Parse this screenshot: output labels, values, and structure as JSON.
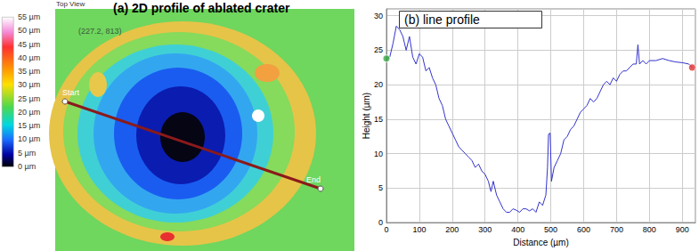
{
  "chart_data": [
    {
      "type": "image",
      "title": "(a) 2D profile of ablated crater",
      "view_label": "Top View",
      "annotations": [
        "(227.2, 813)"
      ],
      "line_labels": [
        "Start",
        "End"
      ],
      "colorbar": {
        "range": [
          0,
          55
        ],
        "ticks": [
          {
            "value": 0,
            "label": "0 µm"
          },
          {
            "value": 5,
            "label": "5 µm"
          },
          {
            "value": 10,
            "label": "10 µm"
          },
          {
            "value": 15,
            "label": "15 µm"
          },
          {
            "value": 20,
            "label": "20 µm"
          },
          {
            "value": 25,
            "label": "25 µm"
          },
          {
            "value": 30,
            "label": "30 µm"
          },
          {
            "value": 35,
            "label": "35 µm"
          },
          {
            "value": 40,
            "label": "40 µm"
          },
          {
            "value": 45,
            "label": "45 µm"
          },
          {
            "value": 50,
            "label": "50 µm"
          },
          {
            "value": 55,
            "label": "55 µm"
          }
        ]
      }
    },
    {
      "type": "line",
      "title": "(b) line profile",
      "x_label": "Distance (µm)",
      "y_label": "Height (µm)",
      "x": [
        0,
        10,
        20,
        30,
        40,
        50,
        60,
        70,
        80,
        90,
        100,
        110,
        120,
        130,
        140,
        150,
        160,
        170,
        180,
        190,
        200,
        210,
        220,
        230,
        240,
        250,
        260,
        270,
        280,
        290,
        300,
        310,
        318,
        325,
        335,
        345,
        355,
        365,
        375,
        385,
        395,
        405,
        415,
        425,
        435,
        445,
        455,
        465,
        475,
        485,
        490,
        493,
        498,
        502,
        510,
        520,
        530,
        540,
        550,
        560,
        570,
        580,
        590,
        600,
        610,
        620,
        630,
        640,
        650,
        660,
        670,
        680,
        690,
        700,
        710,
        720,
        730,
        740,
        750,
        760,
        765,
        770,
        780,
        790,
        800,
        820,
        840,
        860,
        880,
        900,
        920,
        930
      ],
      "values": [
        23.8,
        24,
        26,
        28.5,
        28,
        27,
        25,
        27,
        24,
        23,
        24.5,
        24,
        22,
        22.5,
        21,
        20,
        18,
        17,
        15,
        14,
        13,
        12,
        11,
        10.5,
        10,
        9.5,
        9,
        8,
        8.5,
        7.5,
        7,
        6,
        4.5,
        6,
        4,
        3,
        2,
        1.5,
        1.5,
        2,
        1.8,
        1.5,
        2,
        2,
        1.7,
        2,
        1.5,
        3,
        2.5,
        4,
        8,
        12.8,
        13,
        6,
        8,
        9,
        10,
        12,
        12.5,
        13.5,
        14,
        15,
        16,
        16.5,
        17,
        18,
        17.5,
        18,
        19,
        20,
        20.5,
        20,
        21,
        20.5,
        21.5,
        22,
        22,
        22.5,
        23,
        23,
        25.8,
        23,
        23.5,
        23,
        23.5,
        23.5,
        23.8,
        23.5,
        23.3,
        23.2,
        23,
        22.5
      ],
      "color": "#3333cc",
      "xlim": [
        0,
        940
      ],
      "xticks": [
        0,
        100,
        200,
        300,
        400,
        500,
        600,
        700,
        800,
        900
      ],
      "ylim": [
        0,
        31
      ],
      "yticks": [
        0,
        5,
        10,
        15,
        20,
        25,
        30
      ],
      "grid": true,
      "endpoints": {
        "x": [
          0,
          930
        ],
        "y": [
          23.8,
          22.5
        ],
        "colors": [
          "#3aa845",
          "#e03030"
        ]
      }
    }
  ]
}
